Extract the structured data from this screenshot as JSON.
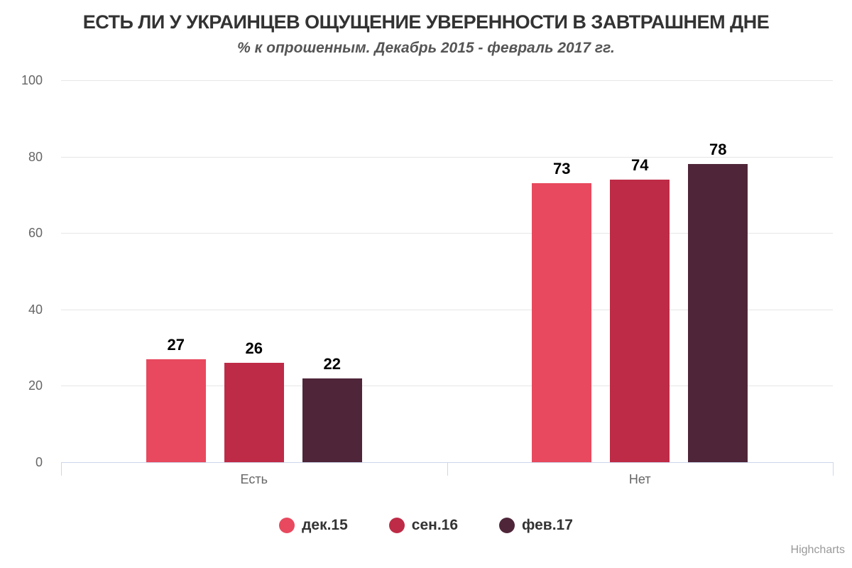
{
  "chart_data": {
    "type": "bar",
    "title": "ЕСТЬ ЛИ У УКРАИНЦЕВ ОЩУЩЕНИЕ УВЕРЕННОСТИ В ЗАВТРАШНЕМ ДНЕ",
    "subtitle": "% к опрошенным. Декабрь 2015 - февраль 2017 гг.",
    "categories": [
      "Есть",
      "Нет"
    ],
    "series": [
      {
        "name": "дек.15",
        "color": "#e8495e",
        "values": [
          27,
          73
        ]
      },
      {
        "name": "сен.16",
        "color": "#be2b46",
        "values": [
          26,
          74
        ]
      },
      {
        "name": "фев.17",
        "color": "#4f2639",
        "values": [
          22,
          78
        ]
      }
    ],
    "ylim": [
      0,
      100
    ],
    "yticks": [
      0,
      20,
      40,
      60,
      80,
      100
    ],
    "grid": true,
    "legend_position": "bottom",
    "credit": "Highcharts"
  },
  "colors": {
    "title": "#333333",
    "subtitle": "#555555",
    "gridline": "#e6e6e6",
    "axis": "#ccd6eb",
    "tick_label": "#666666",
    "data_label": "#000000",
    "credit": "#999999"
  }
}
